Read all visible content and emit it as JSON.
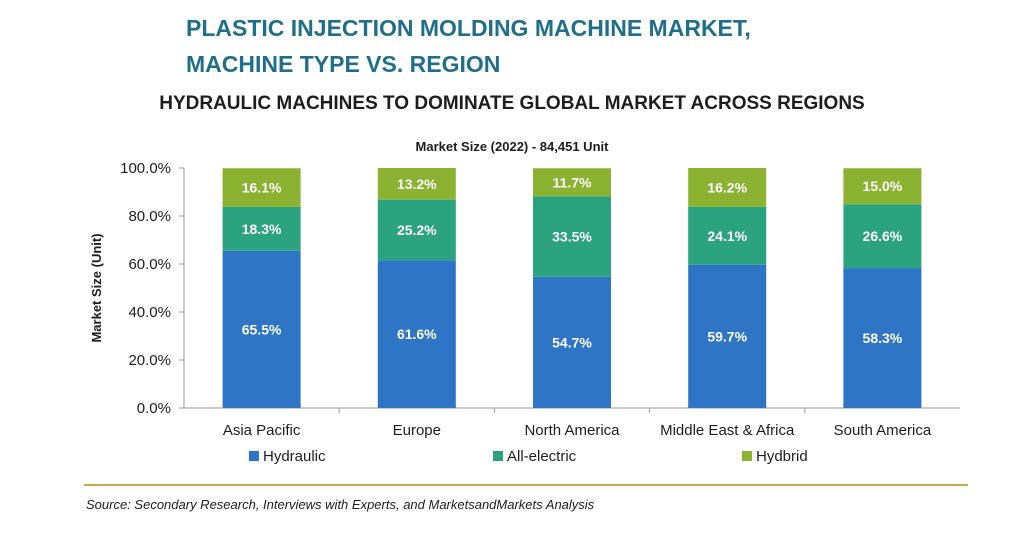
{
  "header": {
    "title_line1": "PLASTIC INJECTION MOLDING MACHINE MARKET,",
    "title_line2": "MACHINE TYPE VS. REGION",
    "subtitle": "HYDRAULIC MACHINES TO DOMINATE GLOBAL MARKET ACROSS REGIONS"
  },
  "chart_data": {
    "type": "bar",
    "stacked": true,
    "title": "Market Size (2022) - 84,451 Unit",
    "xlabel": "",
    "ylabel": "Market Size (Unit)",
    "ylim": [
      0,
      100
    ],
    "yticks": [
      "0.0%",
      "20.0%",
      "40.0%",
      "60.0%",
      "80.0%",
      "100.0%"
    ],
    "categories": [
      "Asia Pacific",
      "Europe",
      "North America",
      "Middle East & Africa",
      "South America"
    ],
    "series": [
      {
        "name": "Hydraulic",
        "color": "#2e75c6",
        "values": [
          65.5,
          61.6,
          54.7,
          59.7,
          58.3
        ],
        "labels": [
          "65.5%",
          "61.6%",
          "54.7%",
          "59.7%",
          "58.3%"
        ]
      },
      {
        "name": "All-electric",
        "color": "#2aa37e",
        "values": [
          18.3,
          25.2,
          33.5,
          24.1,
          26.6
        ],
        "labels": [
          "18.3%",
          "25.2%",
          "33.5%",
          "24.1%",
          "26.6%"
        ]
      },
      {
        "name": "Hydbrid",
        "color": "#8bb231",
        "values": [
          16.1,
          13.2,
          11.7,
          16.2,
          15.0
        ],
        "labels": [
          "16.1%",
          "13.2%",
          "11.7%",
          "16.2%",
          "15.0%"
        ]
      }
    ],
    "legend_position": "bottom",
    "grid": false
  },
  "footer": {
    "source": "Source: Secondary Research, Interviews with Experts, and MarketsandMarkets Analysis"
  }
}
